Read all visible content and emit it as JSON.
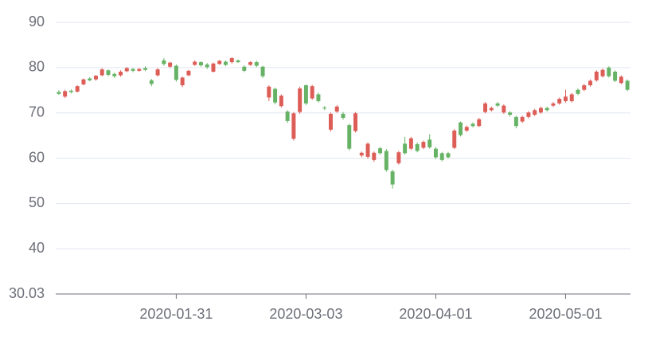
{
  "chart_data": {
    "type": "candlestick",
    "categories": [
      null,
      null,
      null,
      null,
      null,
      null,
      null,
      null,
      null,
      null,
      null,
      null,
      null,
      null,
      null,
      null,
      null,
      null,
      null,
      "2020-01-31",
      null,
      null,
      null,
      null,
      null,
      null,
      null,
      null,
      null,
      null,
      null,
      null,
      null,
      null,
      null,
      null,
      null,
      null,
      null,
      null,
      "2020-03-03",
      null,
      null,
      null,
      null,
      null,
      null,
      null,
      null,
      null,
      null,
      null,
      null,
      null,
      null,
      null,
      null,
      null,
      null,
      null,
      null,
      "2020-04-01",
      null,
      null,
      null,
      null,
      null,
      null,
      null,
      null,
      null,
      null,
      null,
      null,
      null,
      null,
      null,
      null,
      null,
      null,
      null,
      null,
      "2020-05-01",
      null,
      null,
      null,
      null,
      null,
      null,
      null,
      null,
      null,
      null
    ],
    "values": [
      [
        74.6,
        74.2,
        74.0,
        75.0
      ],
      [
        73.6,
        74.8,
        73.3,
        75.1
      ],
      [
        74.9,
        74.6,
        74.3,
        75.2
      ],
      [
        74.7,
        75.9,
        74.5,
        76.1
      ],
      [
        76.3,
        77.4,
        76.1,
        77.6
      ],
      [
        77.6,
        77.2,
        77.0,
        77.9
      ],
      [
        77.4,
        78.2,
        77.1,
        78.4
      ],
      [
        78.3,
        79.6,
        78.1,
        79.9
      ],
      [
        79.4,
        78.4,
        78.1,
        79.6
      ],
      [
        78.6,
        78.1,
        77.7,
        78.9
      ],
      [
        78.3,
        79.1,
        78.0,
        79.4
      ],
      [
        79.2,
        79.9,
        79.0,
        80.1
      ],
      [
        79.7,
        79.3,
        79.0,
        79.9
      ],
      [
        79.3,
        79.7,
        79.1,
        79.9
      ],
      [
        79.9,
        79.5,
        79.2,
        80.3
      ],
      [
        77.2,
        76.4,
        75.9,
        77.5
      ],
      [
        78.3,
        79.6,
        78.0,
        79.9
      ],
      [
        81.6,
        80.8,
        80.4,
        82.1
      ],
      [
        80.2,
        81.1,
        79.9,
        81.3
      ],
      [
        80.4,
        77.3,
        76.9,
        80.7
      ],
      [
        76.1,
        77.8,
        75.7,
        78.0
      ],
      [
        78.3,
        79.3,
        78.1,
        79.5
      ],
      [
        80.6,
        81.3,
        80.4,
        81.6
      ],
      [
        81.2,
        80.5,
        80.2,
        81.4
      ],
      [
        80.7,
        80.1,
        79.7,
        81.0
      ],
      [
        79.1,
        80.9,
        78.9,
        81.1
      ],
      [
        80.8,
        81.5,
        80.6,
        81.7
      ],
      [
        81.3,
        80.6,
        80.3,
        81.6
      ],
      [
        81.2,
        82.1,
        80.9,
        82.3
      ],
      [
        81.6,
        81.2,
        81.0,
        81.8
      ],
      [
        80.2,
        79.3,
        79.0,
        80.5
      ],
      [
        80.6,
        81.2,
        80.4,
        81.4
      ],
      [
        81.2,
        80.4,
        80.1,
        81.5
      ],
      [
        80.2,
        78.1,
        77.7,
        80.4
      ],
      [
        73.4,
        75.8,
        72.6,
        76.1
      ],
      [
        75.3,
        72.3,
        71.9,
        75.6
      ],
      [
        71.5,
        73.8,
        71.2,
        74.1
      ],
      [
        70.3,
        68.2,
        67.8,
        70.6
      ],
      [
        64.3,
        69.9,
        63.9,
        70.2
      ],
      [
        70.2,
        75.4,
        69.8,
        75.8
      ],
      [
        76.1,
        72.1,
        71.7,
        76.3
      ],
      [
        73.2,
        75.9,
        72.9,
        76.2
      ],
      [
        74.1,
        72.6,
        72.3,
        74.5
      ],
      [
        71.2,
        71.0,
        70.6,
        71.5
      ],
      [
        66.3,
        69.8,
        65.9,
        70.1
      ],
      [
        70.3,
        71.4,
        70.0,
        71.7
      ],
      [
        69.8,
        68.9,
        68.5,
        70.2
      ],
      [
        67.3,
        62.1,
        61.7,
        67.6
      ],
      [
        66.0,
        69.9,
        65.7,
        70.2
      ],
      [
        60.6,
        61.2,
        60.2,
        61.5
      ],
      [
        60.3,
        63.2,
        59.9,
        63.5
      ],
      [
        59.6,
        61.2,
        59.2,
        61.5
      ],
      [
        62.2,
        61.1,
        60.8,
        62.5
      ],
      [
        61.6,
        57.4,
        57.0,
        62.0
      ],
      [
        57.1,
        54.2,
        53.3,
        57.5
      ],
      [
        58.9,
        61.3,
        58.6,
        61.6
      ],
      [
        63.2,
        61.1,
        60.8,
        64.7
      ],
      [
        62.1,
        64.4,
        61.8,
        64.7
      ],
      [
        63.1,
        61.6,
        61.3,
        63.5
      ],
      [
        62.3,
        63.6,
        62.0,
        63.9
      ],
      [
        64.1,
        62.4,
        62.1,
        65.3
      ],
      [
        62.1,
        60.2,
        59.8,
        62.5
      ],
      [
        61.1,
        59.6,
        59.3,
        61.4
      ],
      [
        61.1,
        60.2,
        59.9,
        61.4
      ],
      [
        62.3,
        66.1,
        62.0,
        66.4
      ],
      [
        67.9,
        65.1,
        64.8,
        68.1
      ],
      [
        66.1,
        66.9,
        65.8,
        67.2
      ],
      [
        67.6,
        67.1,
        66.8,
        67.9
      ],
      [
        67.1,
        68.6,
        66.9,
        68.9
      ],
      [
        70.2,
        72.1,
        69.9,
        72.4
      ],
      [
        70.6,
        71.1,
        70.3,
        71.4
      ],
      [
        72.1,
        71.6,
        71.3,
        72.4
      ],
      [
        70.1,
        71.6,
        69.8,
        71.9
      ],
      [
        70.1,
        69.6,
        69.2,
        70.4
      ],
      [
        69.1,
        67.1,
        66.6,
        69.4
      ],
      [
        68.1,
        69.1,
        67.8,
        69.4
      ],
      [
        69.1,
        70.1,
        68.8,
        70.4
      ],
      [
        69.6,
        70.6,
        69.3,
        70.9
      ],
      [
        70.1,
        71.1,
        69.8,
        71.4
      ],
      [
        71.1,
        70.6,
        70.3,
        71.4
      ],
      [
        71.6,
        72.1,
        71.3,
        72.4
      ],
      [
        72.1,
        73.1,
        71.8,
        73.4
      ],
      [
        72.6,
        73.6,
        72.3,
        75.1
      ],
      [
        72.6,
        74.1,
        72.3,
        74.4
      ],
      [
        75.1,
        74.2,
        73.9,
        75.4
      ],
      [
        75.1,
        76.1,
        74.8,
        76.4
      ],
      [
        76.1,
        77.1,
        75.8,
        77.4
      ],
      [
        77.2,
        79.1,
        76.9,
        79.4
      ],
      [
        78.1,
        79.5,
        77.8,
        79.8
      ],
      [
        80.0,
        78.1,
        77.8,
        80.3
      ],
      [
        79.1,
        77.1,
        76.8,
        79.4
      ],
      [
        76.6,
        78.0,
        76.3,
        78.3
      ],
      [
        77.1,
        75.1,
        74.8,
        77.4
      ]
    ],
    "up_color": "#dd5d57",
    "down_color": "#66b366",
    "ylim": [
      30.03,
      90
    ],
    "yticks": [
      30.03,
      40,
      50,
      60,
      70,
      80,
      90
    ],
    "grid": true
  }
}
